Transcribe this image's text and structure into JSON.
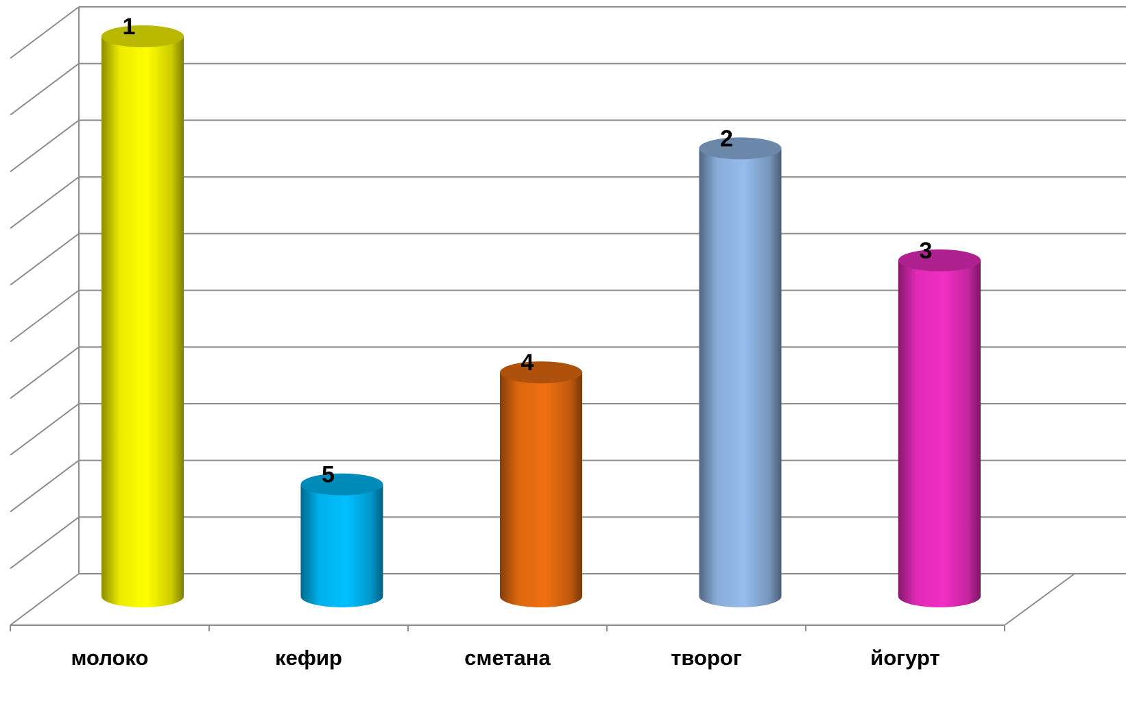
{
  "chart_data": {
    "type": "bar",
    "style": "3d-cylinder",
    "categories": [
      "молоко",
      "кефир",
      "сметана",
      "творог",
      "йогурт"
    ],
    "values": [
      10,
      2,
      4,
      8,
      6
    ],
    "data_labels": [
      "1",
      "5",
      "4",
      "2",
      "3"
    ],
    "colors": [
      "#ffff00",
      "#00bfff",
      "#f07010",
      "#95bcec",
      "#f22ec5"
    ],
    "ylim": [
      0,
      10
    ],
    "ytick_step": 1,
    "grid": true,
    "legend": "none",
    "title": "",
    "xlabel": "",
    "ylabel": ""
  }
}
